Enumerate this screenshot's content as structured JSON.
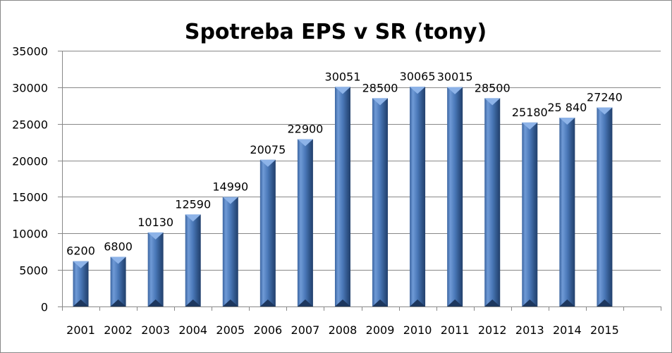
{
  "chart_data": {
    "type": "bar",
    "title": "Spotreba EPS v SR (tony)",
    "xlabel": "",
    "ylabel": "",
    "categories": [
      "2001",
      "2002",
      "2003",
      "2004",
      "2005",
      "2006",
      "2007",
      "2008",
      "2009",
      "2010",
      "2011",
      "2012",
      "2013",
      "2014",
      "2015",
      ""
    ],
    "values": [
      6200,
      6800,
      10130,
      12590,
      14990,
      20075,
      22900,
      30051,
      28500,
      30065,
      30015,
      28500,
      25180,
      25840,
      27240,
      null
    ],
    "data_labels": [
      "6200",
      "6800",
      "10130",
      "12590",
      "14990",
      "20075",
      "22900",
      "30051",
      "28500",
      "30065",
      "30015",
      "28500",
      "25180",
      "25 840",
      "27240",
      ""
    ],
    "ylim": [
      0,
      35000
    ],
    "yticks": [
      0,
      5000,
      10000,
      15000,
      20000,
      25000,
      30000,
      35000
    ],
    "ytick_labels": [
      "0",
      "5000",
      "10000",
      "15000",
      "20000",
      "25000",
      "30000",
      "35000"
    ],
    "grid": true,
    "legend": "none",
    "bar_color": "#4F81BD"
  }
}
